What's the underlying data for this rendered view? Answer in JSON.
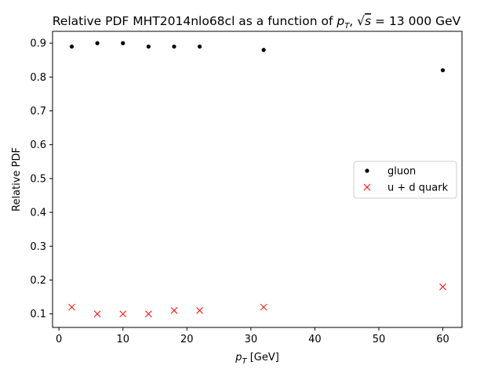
{
  "chart_data": {
    "type": "scatter",
    "title": {
      "prefix": "Relative PDF MHT2014nlo68cl as a function of ",
      "pt_symbol": "p",
      "pt_subscript": "T",
      "sep": ", ",
      "sqrt_symbol": "√",
      "sqrt_var": "s",
      "equals_value": " = 13 000 GeV"
    },
    "xlabel": {
      "symbol": "p",
      "subscript": "T",
      "unit": " [GeV]"
    },
    "ylabel": "Relative PDF",
    "xlim": [
      -1,
      63
    ],
    "ylim": [
      0.06,
      0.935
    ],
    "xticks": [
      0,
      10,
      20,
      30,
      40,
      50,
      60
    ],
    "xtick_labels": [
      "0",
      "10",
      "20",
      "30",
      "40",
      "50",
      "60"
    ],
    "yticks": [
      0.1,
      0.2,
      0.3,
      0.4,
      0.5,
      0.6,
      0.7,
      0.8,
      0.9
    ],
    "ytick_labels": [
      "0.1",
      "0.2",
      "0.3",
      "0.4",
      "0.5",
      "0.6",
      "0.7",
      "0.8",
      "0.9"
    ],
    "grid": false,
    "legend_position": "center-right",
    "series": [
      {
        "name": "gluon",
        "marker": "dot",
        "color": "#000000",
        "x": [
          2,
          6,
          10,
          14,
          18,
          22,
          32,
          60
        ],
        "y": [
          0.89,
          0.9,
          0.9,
          0.89,
          0.89,
          0.89,
          0.88,
          0.82
        ]
      },
      {
        "name": "u + d quark",
        "marker": "x",
        "color": "#ff0000",
        "x": [
          2,
          6,
          10,
          14,
          18,
          22,
          32,
          60
        ],
        "y": [
          0.12,
          0.1,
          0.1,
          0.1,
          0.11,
          0.11,
          0.12,
          0.18
        ]
      }
    ]
  }
}
